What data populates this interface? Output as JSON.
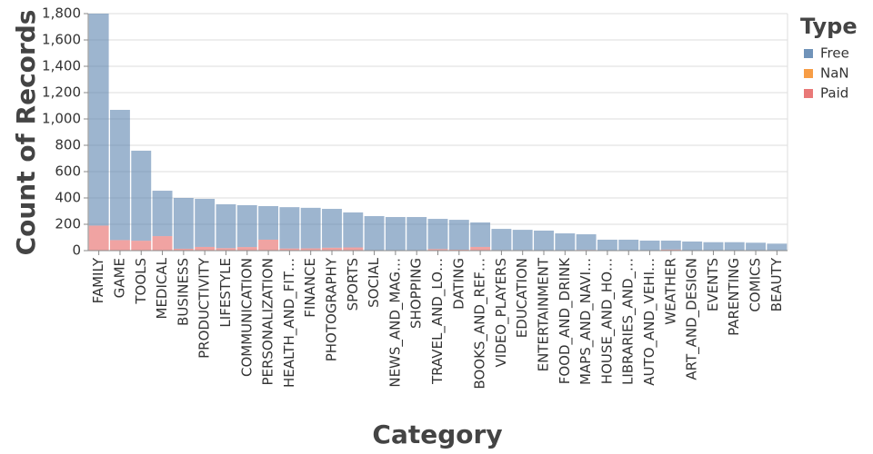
{
  "chart_data": {
    "type": "stacked_bar",
    "x_label": "Category",
    "y_label": "Count of Records",
    "legend_title": "Type",
    "categories": [
      "FAMILY",
      "GAME",
      "TOOLS",
      "MEDICAL",
      "BUSINESS",
      "PRODUCTIVITY",
      "LIFESTYLE",
      "COMMUNICATION",
      "PERSONALIZATION",
      "HEALTH_AND_FIT…",
      "FINANCE",
      "PHOTOGRAPHY",
      "SPORTS",
      "SOCIAL",
      "NEWS_AND_MAG…",
      "SHOPPING",
      "TRAVEL_AND_LO…",
      "DATING",
      "BOOKS_AND_REF…",
      "VIDEO_PLAYERS",
      "EDUCATION",
      "ENTERTAINMENT",
      "FOOD_AND_DRINK",
      "MAPS_AND_NAVI…",
      "HOUSE_AND_HO…",
      "LIBRARIES_AND_…",
      "AUTO_AND_VEHI…",
      "WEATHER",
      "ART_AND_DESIGN",
      "EVENTS",
      "PARENTING",
      "COMICS",
      "BEAUTY"
    ],
    "series": [
      {
        "name": "Free",
        "color": "#4c78a8",
        "values": [
          1610,
          989,
          684,
          345,
          386,
          365,
          333,
          318,
          255,
          314,
          308,
          295,
          266,
          259,
          253,
          253,
          229,
          227,
          186,
          161,
          154,
          150,
          129,
          119,
          83,
          82,
          73,
          68,
          66,
          64,
          62,
          60,
          53
        ]
      },
      {
        "name": "NaN",
        "color": "#f58518",
        "values": [
          0,
          0,
          0,
          0,
          0,
          0,
          0,
          0,
          0,
          0,
          0,
          0,
          0,
          0,
          0,
          0,
          0,
          0,
          0,
          0,
          0,
          0,
          0,
          0,
          0,
          0,
          0,
          0,
          0,
          0,
          0,
          0,
          0
        ]
      },
      {
        "name": "Paid",
        "color": "#e45756",
        "values": [
          190,
          80,
          75,
          110,
          14,
          28,
          19,
          27,
          83,
          16,
          17,
          22,
          24,
          3,
          2,
          2,
          12,
          7,
          28,
          4,
          4,
          2,
          2,
          5,
          0,
          1,
          3,
          8,
          3,
          0,
          2,
          0,
          0
        ]
      }
    ],
    "ylim": [
      0,
      1800
    ],
    "yticks": [
      0,
      200,
      400,
      600,
      800,
      {
        "value": 1000,
        "label": "1,000"
      },
      {
        "value": 1200,
        "label": "1,200"
      },
      {
        "value": 1400,
        "label": "1,400"
      },
      {
        "value": 1600,
        "label": "1,600"
      },
      {
        "value": 1800,
        "label": "1,800"
      }
    ],
    "grid": true,
    "legend_position": "right"
  }
}
